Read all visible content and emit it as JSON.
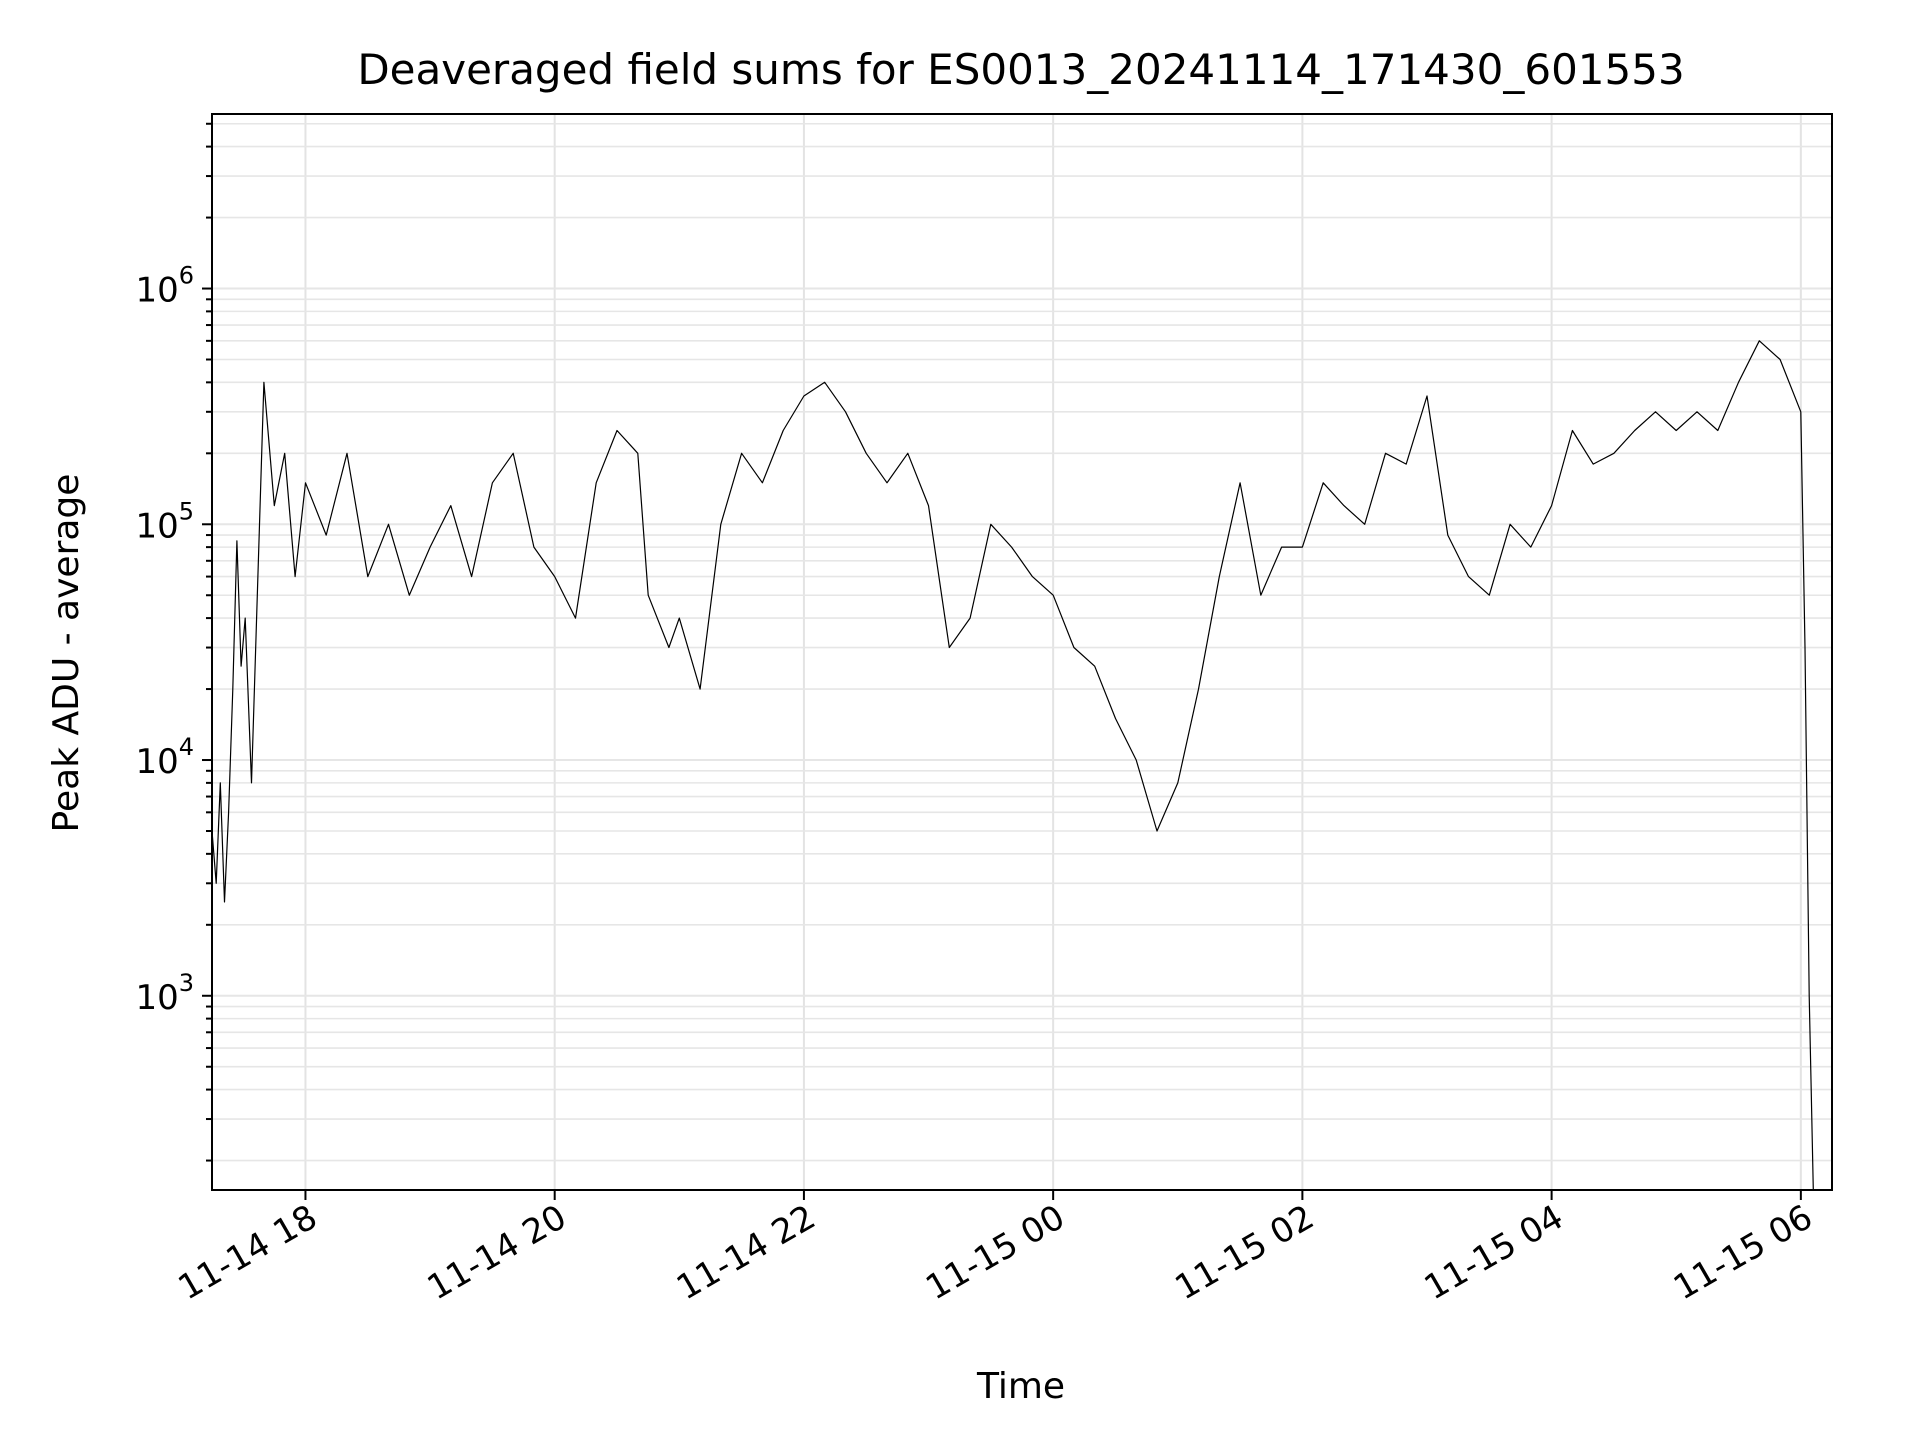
{
  "chart_data": {
    "type": "line",
    "title": "Deaveraged field sums for ES0013_20241114_171430_601553",
    "xlabel": "Time",
    "ylabel": "Peak ADU - average",
    "y_scale": "log",
    "ylim": [
      150,
      5500000
    ],
    "xlim": [
      "2024-11-14 17:15",
      "2024-11-15 06:15"
    ],
    "grid": "major and minor",
    "line_color": "#000000",
    "x_ticks": [
      {
        "label": "11-14 18",
        "time": "2024-11-14 18:00"
      },
      {
        "label": "11-14 20",
        "time": "2024-11-14 20:00"
      },
      {
        "label": "11-14 22",
        "time": "2024-11-14 22:00"
      },
      {
        "label": "11-15 00",
        "time": "2024-11-15 00:00"
      },
      {
        "label": "11-15 02",
        "time": "2024-11-15 02:00"
      },
      {
        "label": "11-15 04",
        "time": "2024-11-15 04:00"
      },
      {
        "label": "11-15 06",
        "time": "2024-11-15 06:00"
      }
    ],
    "y_ticks": [
      {
        "base": "10",
        "exp": "3",
        "value": 1000
      },
      {
        "base": "10",
        "exp": "4",
        "value": 10000
      },
      {
        "base": "10",
        "exp": "5",
        "value": 100000
      },
      {
        "base": "10",
        "exp": "6",
        "value": 1000000
      }
    ],
    "series": [
      {
        "x": [
          "2024-11-14 17:15",
          "2024-11-14 17:17",
          "2024-11-14 17:19",
          "2024-11-14 17:21",
          "2024-11-14 17:23",
          "2024-11-14 17:25",
          "2024-11-14 17:27",
          "2024-11-14 17:29",
          "2024-11-14 17:31",
          "2024-11-14 17:34",
          "2024-11-14 17:40",
          "2024-11-14 17:45",
          "2024-11-14 17:50",
          "2024-11-14 17:55",
          "2024-11-14 18:00",
          "2024-11-14 18:10",
          "2024-11-14 18:20",
          "2024-11-14 18:30",
          "2024-11-14 18:40",
          "2024-11-14 18:50",
          "2024-11-14 19:00",
          "2024-11-14 19:10",
          "2024-11-14 19:20",
          "2024-11-14 19:30",
          "2024-11-14 19:40",
          "2024-11-14 19:50",
          "2024-11-14 20:00",
          "2024-11-14 20:10",
          "2024-11-14 20:20",
          "2024-11-14 20:30",
          "2024-11-14 20:40",
          "2024-11-14 20:45",
          "2024-11-14 20:55",
          "2024-11-14 21:00",
          "2024-11-14 21:10",
          "2024-11-14 21:20",
          "2024-11-14 21:30",
          "2024-11-14 21:40",
          "2024-11-14 21:50",
          "2024-11-14 22:00",
          "2024-11-14 22:10",
          "2024-11-14 22:20",
          "2024-11-14 22:30",
          "2024-11-14 22:40",
          "2024-11-14 22:50",
          "2024-11-14 23:00",
          "2024-11-14 23:10",
          "2024-11-14 23:20",
          "2024-11-14 23:30",
          "2024-11-14 23:40",
          "2024-11-14 23:50",
          "2024-11-15 00:00",
          "2024-11-15 00:10",
          "2024-11-15 00:20",
          "2024-11-15 00:30",
          "2024-11-15 00:40",
          "2024-11-15 00:50",
          "2024-11-15 01:00",
          "2024-11-15 01:10",
          "2024-11-15 01:20",
          "2024-11-15 01:30",
          "2024-11-15 01:40",
          "2024-11-15 01:50",
          "2024-11-15 02:00",
          "2024-11-15 02:10",
          "2024-11-15 02:20",
          "2024-11-15 02:30",
          "2024-11-15 02:40",
          "2024-11-15 02:50",
          "2024-11-15 03:00",
          "2024-11-15 03:10",
          "2024-11-15 03:20",
          "2024-11-15 03:30",
          "2024-11-15 03:40",
          "2024-11-15 03:50",
          "2024-11-15 04:00",
          "2024-11-15 04:10",
          "2024-11-15 04:20",
          "2024-11-15 04:30",
          "2024-11-15 04:40",
          "2024-11-15 04:50",
          "2024-11-15 05:00",
          "2024-11-15 05:10",
          "2024-11-15 05:20",
          "2024-11-15 05:30",
          "2024-11-15 05:40",
          "2024-11-15 05:50",
          "2024-11-15 06:00",
          "2024-11-15 06:02",
          "2024-11-15 06:04",
          "2024-11-15 06:05",
          "2024-11-15 06:06"
        ],
        "y": [
          5000,
          3000,
          8000,
          2500,
          6000,
          20000,
          85000,
          25000,
          40000,
          8000,
          400000,
          120000,
          200000,
          60000,
          150000,
          90000,
          200000,
          60000,
          100000,
          50000,
          80000,
          120000,
          60000,
          150000,
          200000,
          80000,
          60000,
          40000,
          150000,
          250000,
          200000,
          50000,
          30000,
          40000,
          20000,
          100000,
          200000,
          150000,
          250000,
          350000,
          400000,
          300000,
          200000,
          150000,
          200000,
          120000,
          30000,
          40000,
          100000,
          80000,
          60000,
          50000,
          30000,
          25000,
          15000,
          10000,
          5000,
          8000,
          20000,
          60000,
          150000,
          50000,
          80000,
          80000,
          150000,
          120000,
          100000,
          200000,
          180000,
          350000,
          90000,
          60000,
          50000,
          100000,
          80000,
          120000,
          250000,
          180000,
          200000,
          250000,
          300000,
          250000,
          300000,
          250000,
          400000,
          600000,
          500000,
          300000,
          30000,
          1000,
          400,
          150
        ]
      }
    ]
  }
}
